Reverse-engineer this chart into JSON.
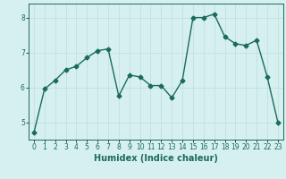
{
  "x": [
    0,
    1,
    2,
    3,
    4,
    5,
    6,
    7,
    8,
    9,
    10,
    11,
    12,
    13,
    14,
    15,
    16,
    17,
    18,
    19,
    20,
    21,
    22,
    23
  ],
  "y": [
    4.7,
    5.95,
    6.2,
    6.5,
    6.6,
    6.85,
    7.05,
    7.1,
    5.75,
    6.35,
    6.3,
    6.05,
    6.05,
    5.7,
    6.2,
    8.0,
    8.0,
    8.1,
    7.45,
    7.25,
    7.2,
    7.35,
    6.3,
    5.0
  ],
  "line_color": "#1a6b5a",
  "marker": "D",
  "markersize": 2.5,
  "linewidth": 1.0,
  "xlabel": "Humidex (Indice chaleur)",
  "xlabel_fontsize": 7,
  "ylim": [
    4.5,
    8.4
  ],
  "xlim": [
    -0.5,
    23.5
  ],
  "yticks": [
    5,
    6,
    7,
    8
  ],
  "xtick_labels": [
    "0",
    "1",
    "2",
    "3",
    "4",
    "5",
    "6",
    "7",
    "8",
    "9",
    "10",
    "11",
    "12",
    "13",
    "14",
    "15",
    "16",
    "17",
    "18",
    "19",
    "20",
    "21",
    "22",
    "23"
  ],
  "bg_color": "#d6f0ef",
  "grid_color": "#c2e0de",
  "tick_fontsize": 5.5,
  "title": ""
}
